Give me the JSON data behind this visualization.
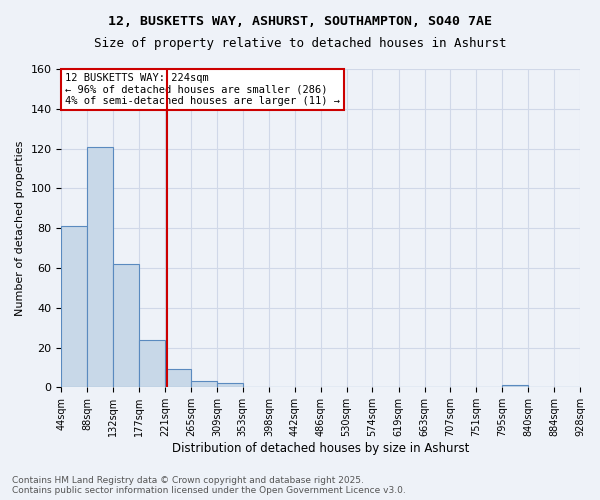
{
  "title1": "12, BUSKETTS WAY, ASHURST, SOUTHAMPTON, SO40 7AE",
  "title2": "Size of property relative to detached houses in Ashurst",
  "xlabel": "Distribution of detached houses by size in Ashurst",
  "ylabel": "Number of detached properties",
  "bar_edges": [
    44,
    88,
    132,
    177,
    221,
    265,
    309,
    353,
    398,
    442,
    486,
    530,
    574,
    619,
    663,
    707,
    751,
    795,
    840,
    884,
    928
  ],
  "bar_heights": [
    81,
    121,
    62,
    24,
    9,
    3,
    2,
    0,
    0,
    0,
    0,
    0,
    0,
    0,
    0,
    0,
    0,
    1,
    0,
    0
  ],
  "bar_color": "#c8d8e8",
  "bar_edge_color": "#5a8abf",
  "property_value": 224,
  "vline_color": "#cc0000",
  "annotation_text": "12 BUSKETTS WAY: 224sqm\n← 96% of detached houses are smaller (286)\n4% of semi-detached houses are larger (11) →",
  "annotation_box_color": "#ffffff",
  "annotation_box_edge": "#cc0000",
  "grid_color": "#d0d8e8",
  "background_color": "#eef2f8",
  "footer_text": "Contains HM Land Registry data © Crown copyright and database right 2025.\nContains public sector information licensed under the Open Government Licence v3.0.",
  "ylim": [
    0,
    160
  ],
  "yticks": [
    0,
    20,
    40,
    60,
    80,
    100,
    120,
    140,
    160
  ],
  "tick_labels": [
    "44sqm",
    "88sqm",
    "132sqm",
    "177sqm",
    "221sqm",
    "265sqm",
    "309sqm",
    "353sqm",
    "398sqm",
    "442sqm",
    "486sqm",
    "530sqm",
    "574sqm",
    "619sqm",
    "663sqm",
    "707sqm",
    "751sqm",
    "795sqm",
    "840sqm",
    "884sqm",
    "928sqm"
  ]
}
